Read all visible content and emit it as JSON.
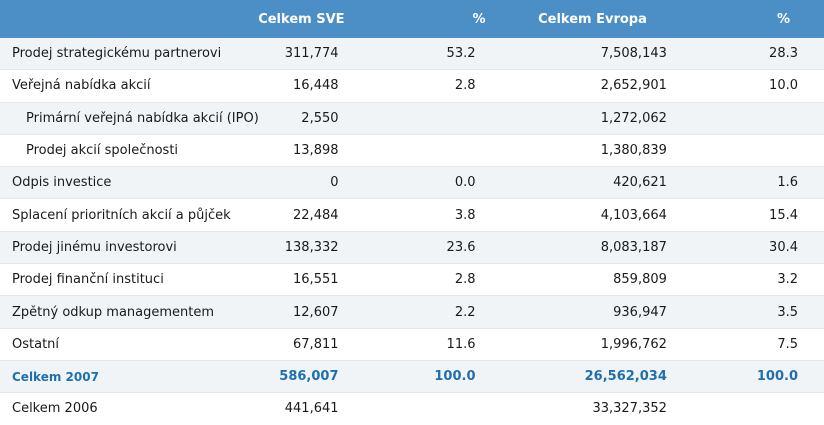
{
  "table": {
    "headers": [
      "",
      "Celkem SVE",
      "%",
      "Celkem Evropa",
      "%"
    ],
    "rows": [
      {
        "label": "Prodej strategickému partnerovi",
        "sve": "311,774",
        "sve_pct": "53.2",
        "eu": "7,508,143",
        "eu_pct": "28.3"
      },
      {
        "label": "Veřejná nabídka akcií",
        "sve": "16,448",
        "sve_pct": "2.8",
        "eu": "2,652,901",
        "eu_pct": "10.0"
      },
      {
        "label": "Primární veřejná nabídka akcií (IPO)",
        "sve": "2,550",
        "sve_pct": "",
        "eu": "1,272,062",
        "eu_pct": ""
      },
      {
        "label": "Prodej akcií společnosti",
        "sve": "13,898",
        "sve_pct": "",
        "eu": "1,380,839",
        "eu_pct": ""
      },
      {
        "label": "Odpis investice",
        "sve": "0",
        "sve_pct": "0.0",
        "eu": "420,621",
        "eu_pct": "1.6"
      },
      {
        "label": "Splacení prioritních akcií a půjček",
        "sve": "22,484",
        "sve_pct": "3.8",
        "eu": "4,103,664",
        "eu_pct": "15.4"
      },
      {
        "label": "Prodej jinému investorovi",
        "sve": "138,332",
        "sve_pct": "23.6",
        "eu": "8,083,187",
        "eu_pct": "30.4"
      },
      {
        "label": "Prodej finanční instituci",
        "sve": "16,551",
        "sve_pct": "2.8",
        "eu": "859,809",
        "eu_pct": "3.2"
      },
      {
        "label": "Zpětný odkup managementem",
        "sve": "12,607",
        "sve_pct": "2.2",
        "eu": "936,947",
        "eu_pct": "3.5"
      },
      {
        "label": "Ostatní",
        "sve": "67,811",
        "sve_pct": "11.6",
        "eu": "1,996,762",
        "eu_pct": "7.5"
      },
      {
        "label": "Celkem 2007",
        "sve": "586,007",
        "sve_pct": "100.0",
        "eu": "26,562,034",
        "eu_pct": "100.0"
      },
      {
        "label": "Celkem 2006",
        "sve": "441,641",
        "sve_pct": "",
        "eu": "33,327,352",
        "eu_pct": ""
      }
    ]
  },
  "colors": {
    "header_bg": "#4b8fc6",
    "total_text": "#1f6fad",
    "stripe": "#f1f4f7"
  }
}
